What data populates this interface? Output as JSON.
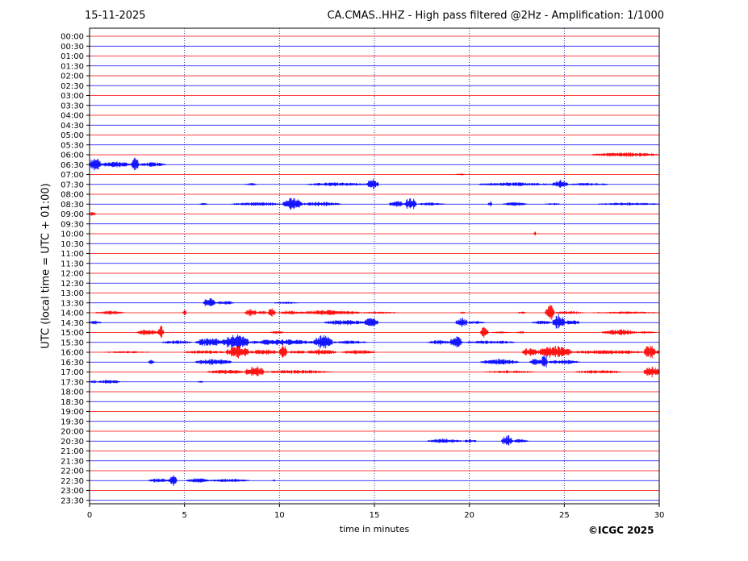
{
  "header": {
    "date": "15-11-2025",
    "title": "CA.CMAS..HHZ - High pass filtered @2Hz - Amplification: 1/1000"
  },
  "footer": {
    "copyright": "©ICGC 2025"
  },
  "colors": {
    "red_trace": "#ff0000",
    "blue_trace": "#0000ff",
    "grid": "#000080"
  },
  "chart_data": {
    "type": "line",
    "title": "CA.CMAS..HHZ - High pass filtered @2Hz - Amplification: 1/1000",
    "xlabel": "time in minutes",
    "ylabel": "UTC (local time = UTC + 01:00)",
    "xlim": [
      0,
      30
    ],
    "x_ticks": [
      "0",
      "5",
      "10",
      "15",
      "20",
      "25",
      "30"
    ],
    "grid": "vertical dotted at 5, 10, 15, 20, 25",
    "rows": [
      "00:00",
      "00:30",
      "01:00",
      "01:30",
      "02:00",
      "02:30",
      "03:00",
      "03:30",
      "04:00",
      "04:30",
      "05:00",
      "05:30",
      "06:00",
      "06:30",
      "07:00",
      "07:30",
      "08:00",
      "08:30",
      "09:00",
      "09:30",
      "10:00",
      "10:30",
      "11:00",
      "11:30",
      "12:00",
      "12:30",
      "13:00",
      "13:30",
      "14:00",
      "14:30",
      "15:00",
      "15:30",
      "16:00",
      "16:30",
      "17:00",
      "17:30",
      "18:00",
      "18:30",
      "19:00",
      "19:30",
      "20:00",
      "20:30",
      "21:00",
      "21:30",
      "22:00",
      "22:30",
      "23:00",
      "23:30"
    ],
    "row_colors": "alternating red (even rows) / blue (odd rows)",
    "events": [
      {
        "row": "06:00",
        "segments": [
          [
            26.5,
            30,
            3
          ]
        ]
      },
      {
        "row": "06:30",
        "segments": [
          [
            0,
            0.6,
            10
          ],
          [
            0.6,
            2.2,
            4
          ],
          [
            2.2,
            2.6,
            10
          ],
          [
            2.6,
            4.0,
            3
          ]
        ]
      },
      {
        "row": "07:00",
        "segments": [
          [
            19.3,
            19.8,
            1.5
          ]
        ]
      },
      {
        "row": "07:30",
        "segments": [
          [
            8.2,
            8.8,
            2
          ],
          [
            11.5,
            14.6,
            2.5
          ],
          [
            14.6,
            15.2,
            7
          ],
          [
            20.5,
            24.4,
            2.5
          ],
          [
            24.4,
            25.2,
            6
          ],
          [
            25.2,
            27.3,
            2
          ]
        ]
      },
      {
        "row": "08:30",
        "segments": [
          [
            5.8,
            6.2,
            1.5
          ],
          [
            7.5,
            10.2,
            2.5
          ],
          [
            10.2,
            11.2,
            8
          ],
          [
            11.2,
            13.2,
            3
          ],
          [
            15.8,
            16.6,
            4
          ],
          [
            16.6,
            17.2,
            9
          ],
          [
            17.2,
            18.7,
            2
          ],
          [
            21.0,
            21.2,
            4
          ],
          [
            21.8,
            23.0,
            2.5
          ],
          [
            24.0,
            24.8,
            1.5
          ],
          [
            26.8,
            30,
            2
          ]
        ]
      },
      {
        "row": "09:00",
        "segments": [
          [
            0,
            0.3,
            3
          ]
        ]
      },
      {
        "row": "10:00",
        "segments": [
          [
            23.4,
            23.5,
            4
          ]
        ]
      },
      {
        "row": "13:30",
        "segments": [
          [
            6.0,
            6.6,
            7
          ],
          [
            6.6,
            7.6,
            2.5
          ],
          [
            9.7,
            11.0,
            1.5
          ]
        ]
      },
      {
        "row": "14:00",
        "segments": [
          [
            0.3,
            1.8,
            2.5
          ],
          [
            4.9,
            5.1,
            4
          ],
          [
            8.2,
            8.8,
            5
          ],
          [
            8.8,
            9.4,
            2.5
          ],
          [
            9.4,
            9.8,
            6
          ],
          [
            10.0,
            11.0,
            3
          ],
          [
            11.0,
            14.2,
            3.5
          ],
          [
            14.2,
            16.2,
            1.5
          ],
          [
            19.5,
            19.8,
            1.5
          ],
          [
            22.5,
            23.0,
            1.5
          ],
          [
            24.0,
            24.5,
            10
          ],
          [
            24.5,
            26.0,
            2
          ],
          [
            26.5,
            30,
            1.5
          ]
        ]
      },
      {
        "row": "14:30",
        "segments": [
          [
            0,
            0.6,
            2.5
          ],
          [
            12.4,
            14.5,
            3.5
          ],
          [
            14.5,
            15.2,
            8
          ],
          [
            19.3,
            19.9,
            6
          ],
          [
            19.9,
            20.8,
            2
          ],
          [
            23.3,
            24.4,
            2.5
          ],
          [
            24.4,
            25.0,
            11
          ],
          [
            25.0,
            25.8,
            4
          ]
        ]
      },
      {
        "row": "15:00",
        "segments": [
          [
            2.5,
            3.6,
            4
          ],
          [
            3.6,
            3.9,
            9
          ],
          [
            9.5,
            10.2,
            2
          ],
          [
            20.6,
            21.0,
            8
          ],
          [
            21.2,
            22.2,
            1.5
          ],
          [
            22.5,
            22.9,
            2
          ],
          [
            27.0,
            28.8,
            4
          ],
          [
            28.8,
            29.8,
            2
          ]
        ]
      },
      {
        "row": "15:30",
        "segments": [
          [
            3.8,
            5.4,
            2.5
          ],
          [
            5.6,
            7.0,
            6
          ],
          [
            7.0,
            8.4,
            10
          ],
          [
            8.4,
            11.8,
            4
          ],
          [
            11.8,
            12.8,
            9
          ],
          [
            12.8,
            14.6,
            2.5
          ],
          [
            17.8,
            19.0,
            3
          ],
          [
            19.0,
            19.6,
            9
          ],
          [
            19.6,
            22.4,
            2.5
          ]
        ]
      },
      {
        "row": "16:00",
        "segments": [
          [
            0.8,
            3.2,
            1.5
          ],
          [
            5.0,
            7.2,
            2.5
          ],
          [
            7.2,
            8.4,
            8
          ],
          [
            8.4,
            10.0,
            3.5
          ],
          [
            10.0,
            10.4,
            10
          ],
          [
            10.4,
            11.5,
            2.5
          ],
          [
            11.5,
            13.0,
            4
          ],
          [
            13.3,
            15.0,
            3
          ],
          [
            22.8,
            23.6,
            6
          ],
          [
            23.6,
            25.4,
            8
          ],
          [
            25.4,
            29.2,
            3
          ],
          [
            29.2,
            29.8,
            10
          ],
          [
            29.8,
            30,
            3
          ]
        ]
      },
      {
        "row": "16:30",
        "segments": [
          [
            3.1,
            3.4,
            3
          ],
          [
            5.6,
            7.5,
            4
          ],
          [
            20.6,
            22.6,
            4
          ],
          [
            23.2,
            23.8,
            5
          ],
          [
            23.8,
            24.1,
            12
          ],
          [
            24.1,
            25.8,
            3
          ]
        ]
      },
      {
        "row": "17:00",
        "segments": [
          [
            6.2,
            8.2,
            3
          ],
          [
            8.2,
            9.2,
            8
          ],
          [
            9.2,
            12.8,
            2.5
          ],
          [
            20.8,
            23.4,
            2
          ],
          [
            25.6,
            28.0,
            2.5
          ],
          [
            29.2,
            30,
            7
          ]
        ]
      },
      {
        "row": "17:30",
        "segments": [
          [
            0,
            0.4,
            2
          ],
          [
            0.4,
            1.6,
            2.5
          ],
          [
            5.7,
            6.0,
            1.5
          ]
        ]
      },
      {
        "row": "20:30",
        "segments": [
          [
            17.8,
            19.6,
            3
          ],
          [
            19.7,
            20.4,
            2.5
          ],
          [
            21.7,
            22.3,
            8
          ],
          [
            22.3,
            23.1,
            2.5
          ]
        ]
      },
      {
        "row": "22:30",
        "segments": [
          [
            3.1,
            4.2,
            3
          ],
          [
            4.2,
            4.6,
            10
          ],
          [
            5.1,
            6.3,
            3
          ],
          [
            6.3,
            8.4,
            2.5
          ],
          [
            9.6,
            9.8,
            1.5
          ]
        ]
      }
    ]
  }
}
